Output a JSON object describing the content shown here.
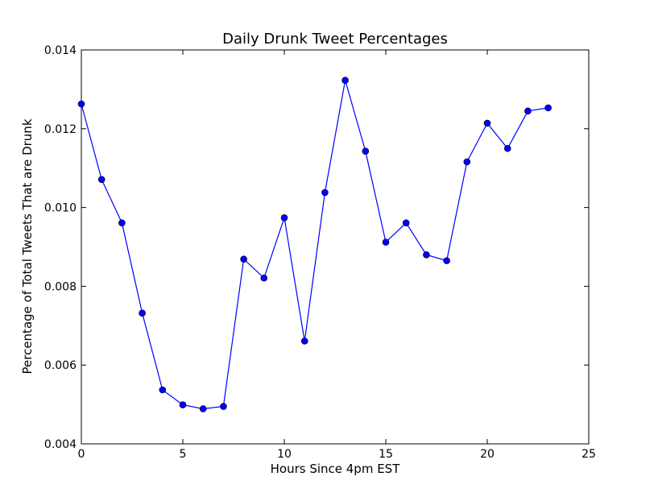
{
  "chart_data": {
    "type": "line",
    "title": "Daily Drunk Tweet Percentages",
    "xlabel": "Hours Since 4pm EST",
    "ylabel": "Percentage of Total Tweets That are Drunk",
    "xlim": [
      0,
      25
    ],
    "ylim": [
      0.004,
      0.014
    ],
    "xticks": [
      0,
      5,
      10,
      15,
      20,
      25
    ],
    "xtick_labels": [
      "0",
      "5",
      "10",
      "15",
      "20",
      "25"
    ],
    "yticks": [
      0.004,
      0.006,
      0.008,
      0.01,
      0.012,
      0.014
    ],
    "ytick_labels": [
      "0.004",
      "0.006",
      "0.008",
      "0.010",
      "0.012",
      "0.014"
    ],
    "grid": false,
    "series": [
      {
        "color": "#0000ff",
        "marker": "circle",
        "x": [
          0,
          1,
          2,
          3,
          4,
          5,
          6,
          7,
          8,
          9,
          10,
          11,
          12,
          13,
          14,
          15,
          16,
          17,
          18,
          19,
          20,
          21,
          22,
          23
        ],
        "y": [
          0.01263,
          0.01071,
          0.00961,
          0.00732,
          0.00537,
          0.00499,
          0.00489,
          0.00495,
          0.00869,
          0.00821,
          0.00974,
          0.00661,
          0.01038,
          0.01323,
          0.01143,
          0.00912,
          0.00961,
          0.0088,
          0.00865,
          0.01116,
          0.01214,
          0.0115,
          0.01245,
          0.01253
        ]
      }
    ]
  }
}
